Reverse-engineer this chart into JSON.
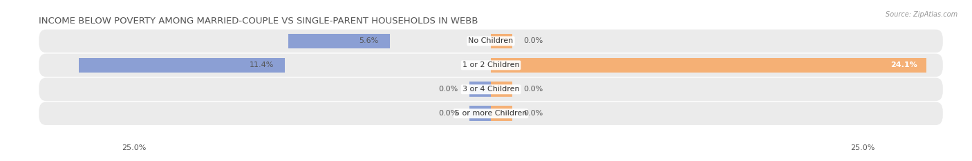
{
  "title": "INCOME BELOW POVERTY AMONG MARRIED-COUPLE VS SINGLE-PARENT HOUSEHOLDS IN WEBB",
  "source": "Source: ZipAtlas.com",
  "categories": [
    "No Children",
    "1 or 2 Children",
    "3 or 4 Children",
    "5 or more Children"
  ],
  "married_values": [
    5.6,
    11.4,
    0.0,
    0.0
  ],
  "single_values": [
    0.0,
    24.1,
    0.0,
    0.0
  ],
  "max_val": 25.0,
  "married_color": "#8b9fd4",
  "single_color": "#f5b075",
  "bar_height": 0.62,
  "row_bg_color": "#ebebeb",
  "background_color": "#ffffff",
  "title_fontsize": 9.5,
  "label_fontsize": 8,
  "val_fontsize": 8,
  "axis_label_fontsize": 8,
  "legend_fontsize": 8,
  "stub_val": 1.2
}
